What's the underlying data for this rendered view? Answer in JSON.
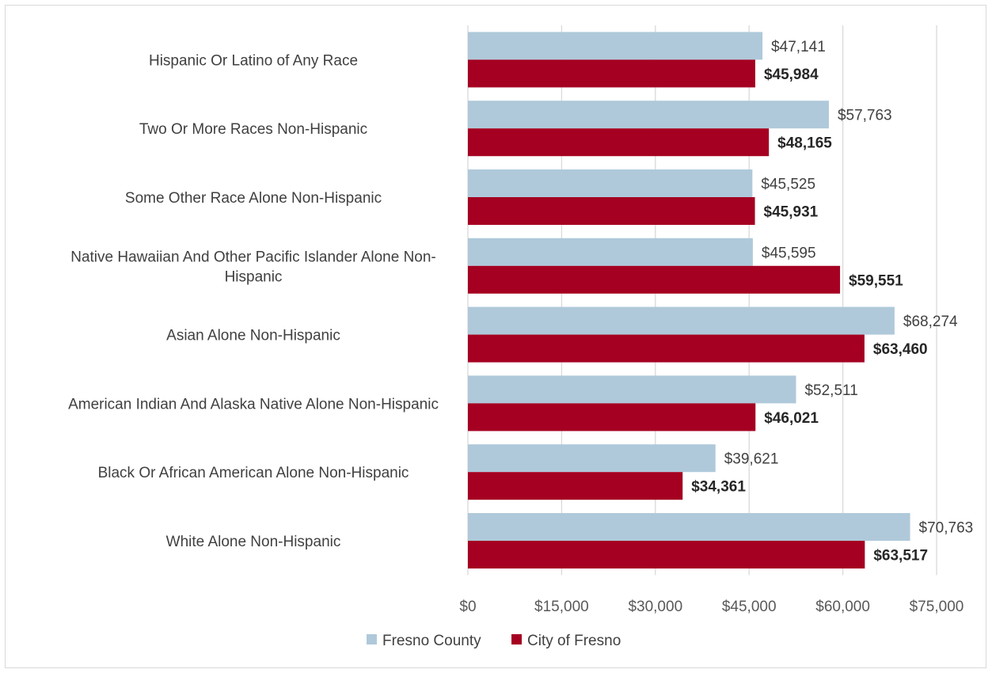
{
  "chart_data": {
    "type": "bar",
    "orientation": "horizontal",
    "categories": [
      [
        "Hispanic Or Latino of Any Race"
      ],
      [
        "Two Or More Races Non-Hispanic"
      ],
      [
        "Some Other Race Alone Non-Hispanic"
      ],
      [
        "Native Hawaiian And Other Pacific Islander Alone Non-",
        "Hispanic"
      ],
      [
        "Asian Alone Non-Hispanic"
      ],
      [
        "American Indian And Alaska Native Alone Non-Hispanic"
      ],
      [
        "Black Or African American Alone Non-Hispanic"
      ],
      [
        "White Alone Non-Hispanic"
      ]
    ],
    "series": [
      {
        "name": "Fresno County",
        "color": "#afc9da",
        "values": [
          47141,
          57763,
          45525,
          45595,
          68274,
          52511,
          39621,
          70763
        ],
        "labels": [
          "$47,141",
          "$57,763",
          "$45,525",
          "$45,595",
          "$68,274",
          "$52,511",
          "$39,621",
          "$70,763"
        ]
      },
      {
        "name": "City of Fresno",
        "color": "#a50021",
        "values": [
          45984,
          48165,
          45931,
          59551,
          63460,
          46021,
          34361,
          63517
        ],
        "labels": [
          "$45,984",
          "$48,165",
          "$45,931",
          "$59,551",
          "$63,460",
          "$46,021",
          "$34,361",
          "$63,517"
        ]
      }
    ],
    "xlim": [
      0,
      75000
    ],
    "xticks": [
      0,
      15000,
      30000,
      45000,
      60000,
      75000
    ],
    "xtick_labels": [
      "$0",
      "$15,000",
      "$30,000",
      "$45,000",
      "$60,000",
      "$75,000"
    ],
    "grid": true,
    "legend": "bottom",
    "title": "",
    "xlabel": "",
    "ylabel": ""
  }
}
